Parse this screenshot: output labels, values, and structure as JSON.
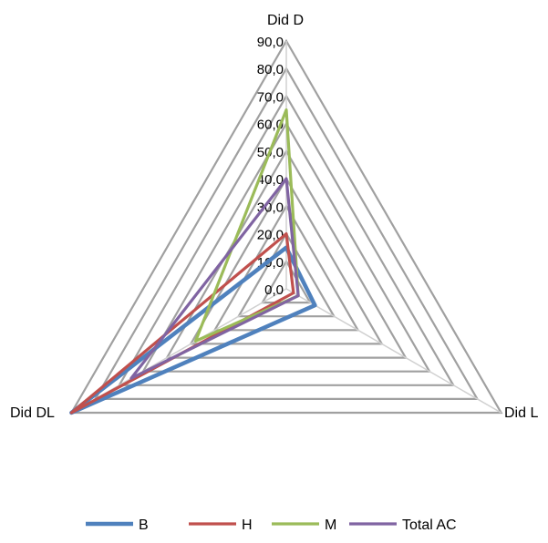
{
  "chart_data": {
    "type": "radar",
    "axes": [
      "Did D",
      "Did L",
      "Did DL"
    ],
    "r_ticks": [
      "0,0",
      "10,0",
      "20,0",
      "30,0",
      "40,0",
      "50,0",
      "60,0",
      "70,0",
      "80,0",
      "90,0"
    ],
    "rlim": [
      0,
      90
    ],
    "grid": true,
    "legend_position": "bottom",
    "series": [
      {
        "name": "B",
        "color": "#4F81BD",
        "values": [
          15.0,
          12.0,
          90.0
        ]
      },
      {
        "name": "H",
        "color": "#C0504D",
        "values": [
          20.0,
          3.0,
          90.0
        ]
      },
      {
        "name": "M",
        "color": "#9BBB59",
        "values": [
          65.0,
          5.0,
          38.0
        ]
      },
      {
        "name": "Total AC",
        "color": "#8064A2",
        "values": [
          40.0,
          5.0,
          65.0
        ]
      }
    ]
  }
}
